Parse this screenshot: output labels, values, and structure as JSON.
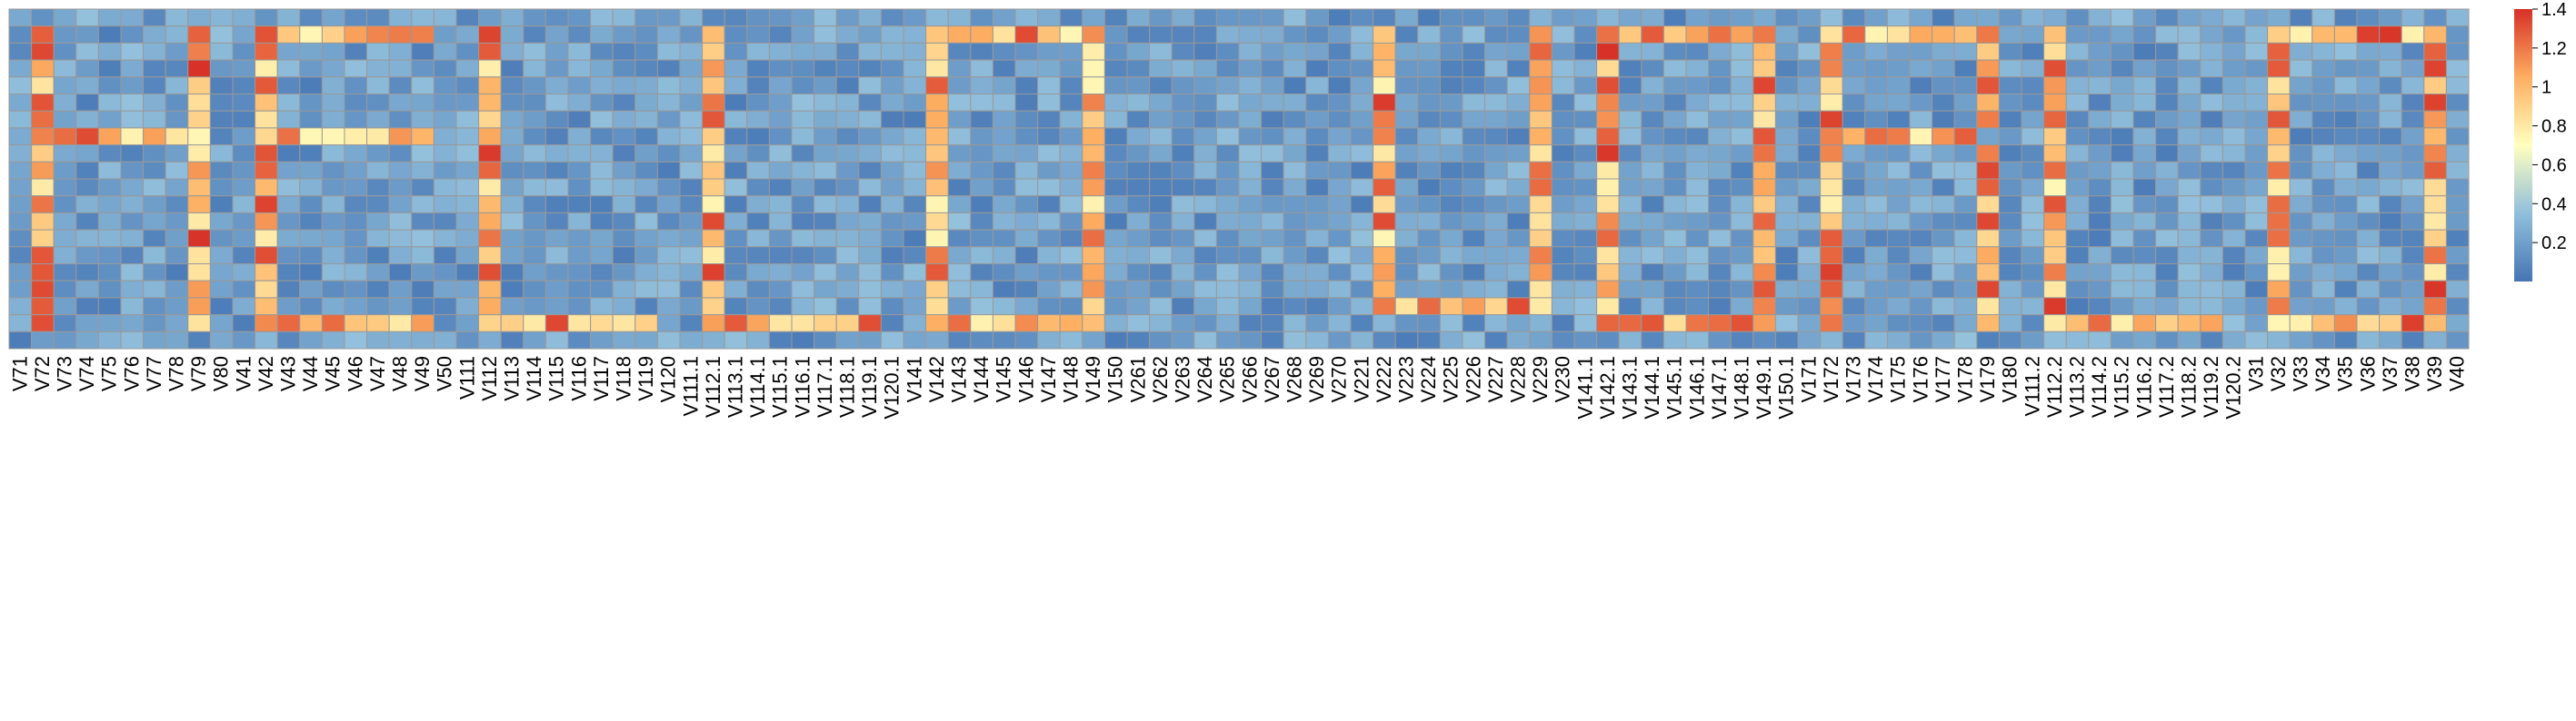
{
  "chart_data": {
    "type": "heatmap",
    "title": "",
    "xlabel": "",
    "ylabel": "",
    "grid": true,
    "legend_placement": "right",
    "colors": {
      "low": "#4575b4",
      "mid_low": "#91bfdb",
      "mid": "#ffffbf",
      "mid_high": "#fdae61",
      "high": "#d73027",
      "cell_border": "#999999"
    },
    "color_range": [
      0,
      1.4
    ],
    "legend_ticks": [
      "1.4",
      "1.2",
      "1",
      "0.8",
      "0.6",
      "0.4",
      "0.2"
    ],
    "x_labels": [
      "V71",
      "V72",
      "V73",
      "V74",
      "V75",
      "V76",
      "V77",
      "V78",
      "V79",
      "V80",
      "V41",
      "V42",
      "V43",
      "V44",
      "V45",
      "V46",
      "V47",
      "V48",
      "V49",
      "V50",
      "V111",
      "V112",
      "V113",
      "V114",
      "V115",
      "V116",
      "V117",
      "V118",
      "V119",
      "V120",
      "V111.1",
      "V112.1",
      "V113.1",
      "V114.1",
      "V115.1",
      "V116.1",
      "V117.1",
      "V118.1",
      "V119.1",
      "V120.1",
      "V141",
      "V142",
      "V143",
      "V144",
      "V145",
      "V146",
      "V147",
      "V148",
      "V149",
      "V150",
      "V261",
      "V262",
      "V263",
      "V264",
      "V265",
      "V266",
      "V267",
      "V268",
      "V269",
      "V270",
      "V221",
      "V222",
      "V223",
      "V224",
      "V225",
      "V226",
      "V227",
      "V228",
      "V229",
      "V230",
      "V141.1",
      "V142.1",
      "V143.1",
      "V144.1",
      "V145.1",
      "V146.1",
      "V147.1",
      "V148.1",
      "V149.1",
      "V150.1",
      "V171",
      "V172",
      "V173",
      "V174",
      "V175",
      "V176",
      "V177",
      "V178",
      "V179",
      "V180",
      "V111.2",
      "V112.2",
      "V113.2",
      "V114.2",
      "V115.2",
      "V116.2",
      "V117.2",
      "V118.2",
      "V119.2",
      "V120.2",
      "V31",
      "V32",
      "V33",
      "V34",
      "V35",
      "V36",
      "V37",
      "V38",
      "V39",
      "V40"
    ],
    "n_rows": 20,
    "value_scheme": "Cell values range 0-1.4; background cells are low noise values (about 0.05-0.5) and letter-stroke cells are high (about 1.0-1.4). Per-cell values are generated by the script from the pattern below.",
    "high_columns": [
      {
        "column": "V72",
        "rows": "2-19"
      },
      {
        "column": "V79",
        "rows": "2-19"
      },
      {
        "column": "V73-V78",
        "rows": "8"
      },
      {
        "column": "V42",
        "rows": "2-19"
      },
      {
        "column": "V43-V49",
        "rows": "2, 8, 19"
      },
      {
        "column": "V112",
        "rows": "2-19"
      },
      {
        "column": "V113-V119",
        "rows": "19"
      },
      {
        "column": "V112.1",
        "rows": "2-19"
      },
      {
        "column": "V113.1-V119.1",
        "rows": "19"
      },
      {
        "column": "V142",
        "rows": "2-19"
      },
      {
        "column": "V149",
        "rows": "2-19"
      },
      {
        "column": "V143-V148",
        "rows": "2, 19"
      },
      {
        "column": "V222",
        "rows": "2-18"
      },
      {
        "column": "V229",
        "rows": "2-18"
      },
      {
        "column": "V223-V228",
        "rows": "18"
      },
      {
        "column": "V142.1",
        "rows": "2-19"
      },
      {
        "column": "V149.1",
        "rows": "2-19"
      },
      {
        "column": "V143.1-V148.1",
        "rows": "2, 19"
      },
      {
        "column": "V172",
        "rows": "2-19"
      },
      {
        "column": "V179",
        "rows": "9-19"
      },
      {
        "column": "V173-V178",
        "rows": "2, 8"
      },
      {
        "column": "V112.2",
        "rows": "2-19"
      },
      {
        "column": "V113.2-V119.2",
        "rows": "19"
      },
      {
        "column": "V32",
        "rows": "2-19"
      },
      {
        "column": "V39",
        "rows": "2-19"
      },
      {
        "column": "V33-V38",
        "rows": "2, 19"
      }
    ]
  }
}
